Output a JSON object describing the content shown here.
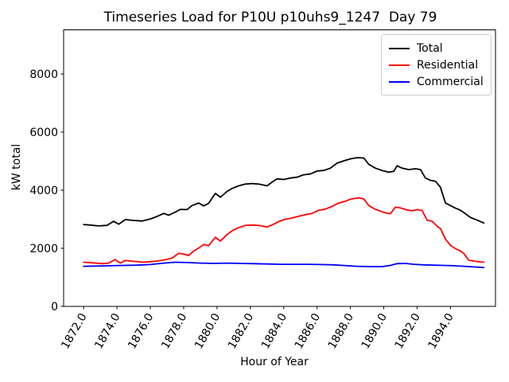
{
  "figure": {
    "window_background": "#ffffff"
  },
  "chart_data": {
    "type": "line",
    "title": "Timeseries Load for P10U p10uhs9_1247  Day 79",
    "xlabel": "Hour of Year",
    "ylabel": "kW total",
    "xlim": [
      1870.8,
      1896.7
    ],
    "ylim": [
      0,
      9520
    ],
    "grid": false,
    "axis_color": "#000000",
    "xtick_rotation": 60,
    "xtick_values": [
      1872,
      1874,
      1876,
      1878,
      1880,
      1882,
      1884,
      1886,
      1888,
      1890,
      1892,
      1894
    ],
    "xtick_labels": [
      "1872.0",
      "1874.0",
      "1876.0",
      "1878.0",
      "1880.0",
      "1882.0",
      "1884.0",
      "1886.0",
      "1888.0",
      "1890.0",
      "1892.0",
      "1894.0"
    ],
    "ytick_values": [
      0,
      2000,
      4000,
      6000,
      8000
    ],
    "ytick_labels": [
      "0",
      "2000",
      "4000",
      "6000",
      "8000"
    ],
    "legend": {
      "position": "upper right",
      "entries": [
        "Total",
        "Residential",
        "Commercial"
      ]
    },
    "series": [
      {
        "name": "Total",
        "color": "#000000",
        "points": [
          [
            1872.0,
            2820
          ],
          [
            1872.4,
            2800
          ],
          [
            1872.9,
            2770
          ],
          [
            1873.4,
            2790
          ],
          [
            1873.8,
            2930
          ],
          [
            1874.1,
            2830
          ],
          [
            1874.5,
            2990
          ],
          [
            1875.0,
            2960
          ],
          [
            1875.5,
            2940
          ],
          [
            1876.0,
            3010
          ],
          [
            1876.3,
            3070
          ],
          [
            1876.8,
            3200
          ],
          [
            1877.1,
            3140
          ],
          [
            1877.5,
            3250
          ],
          [
            1877.8,
            3340
          ],
          [
            1878.2,
            3330
          ],
          [
            1878.5,
            3470
          ],
          [
            1878.9,
            3560
          ],
          [
            1879.2,
            3460
          ],
          [
            1879.5,
            3550
          ],
          [
            1879.9,
            3890
          ],
          [
            1880.2,
            3760
          ],
          [
            1880.6,
            3960
          ],
          [
            1880.9,
            4060
          ],
          [
            1881.3,
            4150
          ],
          [
            1881.7,
            4210
          ],
          [
            1882.1,
            4230
          ],
          [
            1882.5,
            4210
          ],
          [
            1883.0,
            4150
          ],
          [
            1883.3,
            4280
          ],
          [
            1883.6,
            4390
          ],
          [
            1884.0,
            4370
          ],
          [
            1884.4,
            4420
          ],
          [
            1884.8,
            4450
          ],
          [
            1885.2,
            4530
          ],
          [
            1885.6,
            4560
          ],
          [
            1886.0,
            4660
          ],
          [
            1886.4,
            4680
          ],
          [
            1886.8,
            4760
          ],
          [
            1887.2,
            4930
          ],
          [
            1887.6,
            5010
          ],
          [
            1888.0,
            5080
          ],
          [
            1888.4,
            5120
          ],
          [
            1888.8,
            5110
          ],
          [
            1889.1,
            4890
          ],
          [
            1889.5,
            4760
          ],
          [
            1889.9,
            4680
          ],
          [
            1890.3,
            4620
          ],
          [
            1890.6,
            4650
          ],
          [
            1890.8,
            4840
          ],
          [
            1891.1,
            4760
          ],
          [
            1891.5,
            4710
          ],
          [
            1891.9,
            4740
          ],
          [
            1892.2,
            4710
          ],
          [
            1892.5,
            4420
          ],
          [
            1892.8,
            4340
          ],
          [
            1893.1,
            4310
          ],
          [
            1893.4,
            4100
          ],
          [
            1893.7,
            3560
          ],
          [
            1894.0,
            3470
          ],
          [
            1894.3,
            3380
          ],
          [
            1894.6,
            3310
          ],
          [
            1894.9,
            3190
          ],
          [
            1895.2,
            3060
          ],
          [
            1895.6,
            2970
          ],
          [
            1896.0,
            2870
          ]
        ]
      },
      {
        "name": "Residential",
        "color": "#ff0000",
        "points": [
          [
            1872.0,
            1520
          ],
          [
            1872.5,
            1500
          ],
          [
            1873.1,
            1470
          ],
          [
            1873.5,
            1490
          ],
          [
            1873.9,
            1610
          ],
          [
            1874.2,
            1490
          ],
          [
            1874.5,
            1580
          ],
          [
            1875.0,
            1550
          ],
          [
            1875.6,
            1520
          ],
          [
            1876.0,
            1540
          ],
          [
            1876.4,
            1560
          ],
          [
            1876.9,
            1610
          ],
          [
            1877.3,
            1660
          ],
          [
            1877.7,
            1830
          ],
          [
            1878.0,
            1800
          ],
          [
            1878.3,
            1750
          ],
          [
            1878.6,
            1900
          ],
          [
            1878.9,
            2010
          ],
          [
            1879.2,
            2130
          ],
          [
            1879.5,
            2090
          ],
          [
            1879.9,
            2380
          ],
          [
            1880.2,
            2250
          ],
          [
            1880.6,
            2470
          ],
          [
            1880.9,
            2600
          ],
          [
            1881.2,
            2690
          ],
          [
            1881.7,
            2790
          ],
          [
            1882.2,
            2800
          ],
          [
            1882.6,
            2780
          ],
          [
            1883.0,
            2730
          ],
          [
            1883.4,
            2830
          ],
          [
            1883.7,
            2920
          ],
          [
            1884.1,
            3000
          ],
          [
            1884.5,
            3040
          ],
          [
            1884.9,
            3100
          ],
          [
            1885.3,
            3160
          ],
          [
            1885.7,
            3200
          ],
          [
            1886.1,
            3310
          ],
          [
            1886.5,
            3350
          ],
          [
            1886.9,
            3440
          ],
          [
            1887.3,
            3560
          ],
          [
            1887.7,
            3620
          ],
          [
            1888.0,
            3690
          ],
          [
            1888.5,
            3740
          ],
          [
            1888.8,
            3700
          ],
          [
            1889.1,
            3470
          ],
          [
            1889.5,
            3340
          ],
          [
            1889.8,
            3280
          ],
          [
            1890.1,
            3220
          ],
          [
            1890.4,
            3190
          ],
          [
            1890.7,
            3420
          ],
          [
            1891.0,
            3390
          ],
          [
            1891.4,
            3320
          ],
          [
            1891.7,
            3290
          ],
          [
            1892.0,
            3330
          ],
          [
            1892.3,
            3300
          ],
          [
            1892.6,
            2970
          ],
          [
            1892.9,
            2930
          ],
          [
            1893.2,
            2760
          ],
          [
            1893.4,
            2680
          ],
          [
            1893.7,
            2320
          ],
          [
            1894.0,
            2100
          ],
          [
            1894.3,
            1990
          ],
          [
            1894.6,
            1910
          ],
          [
            1894.8,
            1820
          ],
          [
            1895.1,
            1590
          ],
          [
            1895.5,
            1550
          ],
          [
            1896.0,
            1520
          ]
        ]
      },
      {
        "name": "Commercial",
        "color": "#0000ff",
        "points": [
          [
            1872.0,
            1380
          ],
          [
            1872.8,
            1390
          ],
          [
            1873.6,
            1400
          ],
          [
            1874.4,
            1410
          ],
          [
            1875.2,
            1420
          ],
          [
            1876.0,
            1440
          ],
          [
            1876.8,
            1490
          ],
          [
            1877.5,
            1520
          ],
          [
            1878.2,
            1510
          ],
          [
            1879.0,
            1490
          ],
          [
            1879.8,
            1480
          ],
          [
            1880.6,
            1490
          ],
          [
            1881.4,
            1480
          ],
          [
            1882.2,
            1470
          ],
          [
            1883.0,
            1460
          ],
          [
            1883.8,
            1450
          ],
          [
            1884.6,
            1450
          ],
          [
            1885.4,
            1450
          ],
          [
            1886.2,
            1440
          ],
          [
            1887.0,
            1430
          ],
          [
            1887.8,
            1400
          ],
          [
            1888.4,
            1380
          ],
          [
            1889.2,
            1370
          ],
          [
            1889.9,
            1370
          ],
          [
            1890.4,
            1410
          ],
          [
            1890.8,
            1470
          ],
          [
            1891.3,
            1480
          ],
          [
            1891.8,
            1450
          ],
          [
            1892.4,
            1430
          ],
          [
            1893.0,
            1420
          ],
          [
            1893.6,
            1410
          ],
          [
            1894.2,
            1400
          ],
          [
            1894.8,
            1380
          ],
          [
            1895.4,
            1360
          ],
          [
            1896.0,
            1340
          ]
        ]
      }
    ]
  }
}
